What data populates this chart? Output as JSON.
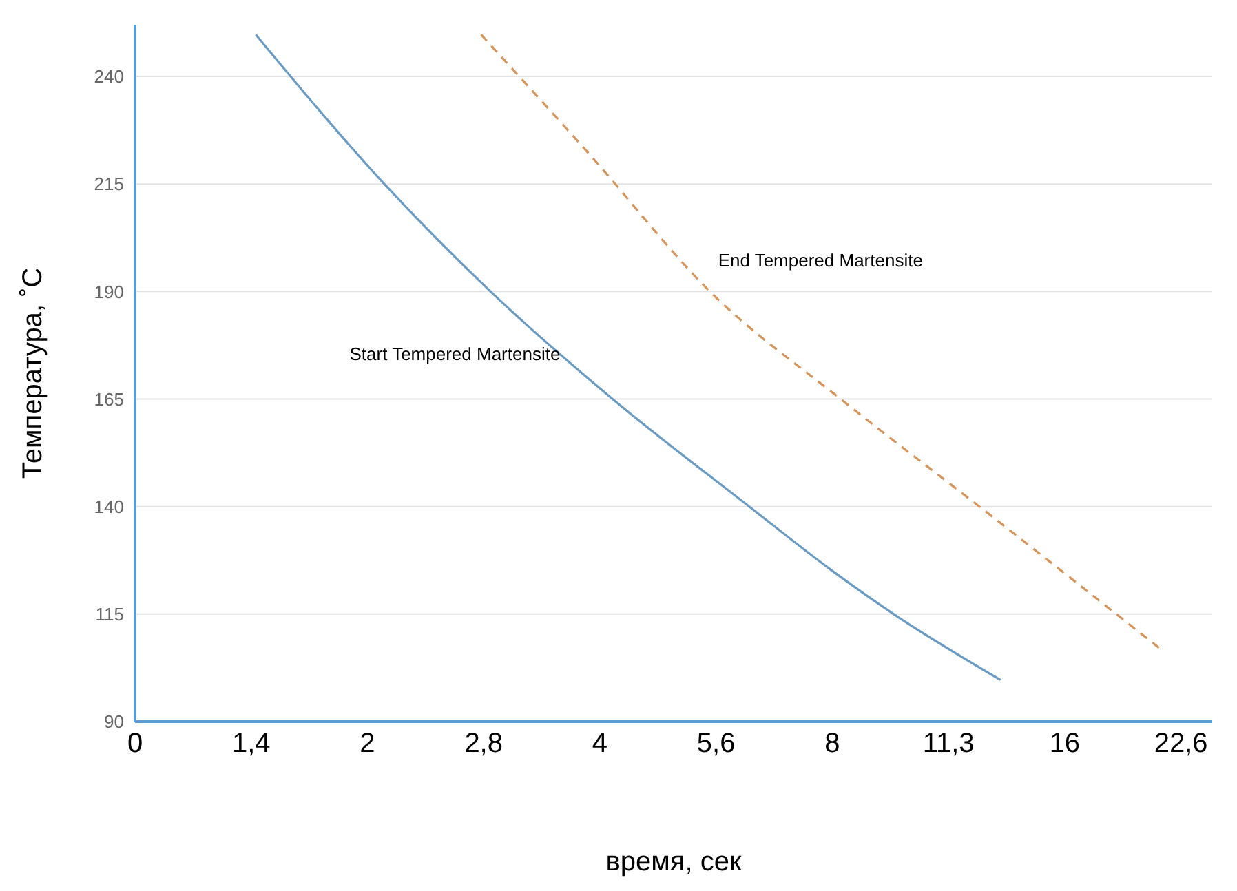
{
  "chart_data": {
    "type": "line",
    "xlabel": "время, сек",
    "ylabel": "Температура, ˚C",
    "xlim": [
      0,
      24.8
    ],
    "log": "x",
    "xticks": [
      0,
      {
        "value": 1.4,
        "label": "1,4"
      },
      2,
      {
        "value": 2.8,
        "label": "2,8"
      },
      4,
      {
        "value": 5.6,
        "label": "5,6"
      },
      8,
      {
        "value": 11.3,
        "label": "11,3"
      },
      16,
      {
        "value": 22.6,
        "label": "22,6"
      }
    ],
    "ylim": [
      90,
      252
    ],
    "yticks": [
      90,
      115,
      140,
      165,
      190,
      215,
      240
    ],
    "grid": "y",
    "marker": "none",
    "series": [
      {
        "name": "Start Tempered Martensite",
        "color": "#6a9bc3",
        "line_style": "solid",
        "x": [
          1.42,
          2.1,
          2.86,
          4.15,
          6.2,
          7.95,
          9.6,
          13.2
        ],
        "values": [
          249.7,
          215,
          190,
          165,
          140,
          125.4,
          115,
          99.7
        ]
      },
      {
        "name": "End Tempered Martensite",
        "color": "#d4945a",
        "line_style": "dashed",
        "x": [
          2.78,
          3.87,
          5.5,
          8.2,
          12.6,
          21.4
        ],
        "values": [
          249.7,
          222,
          190,
          165,
          139,
          106.5
        ]
      }
    ]
  }
}
